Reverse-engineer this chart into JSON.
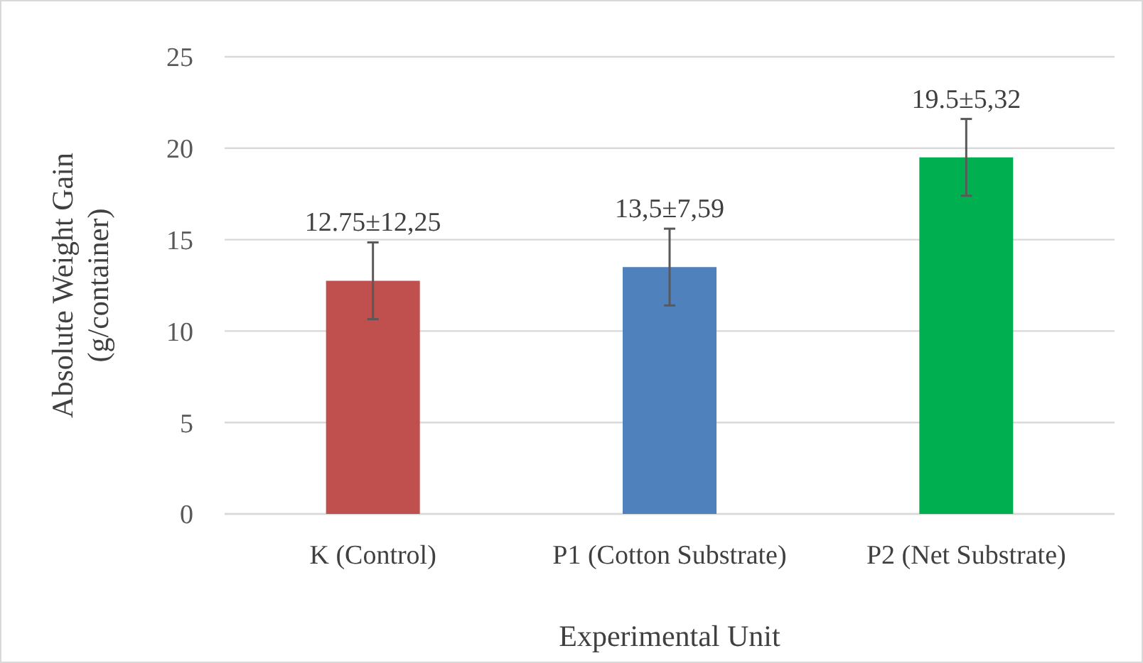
{
  "chart_data": {
    "type": "bar",
    "xlabel": "Experimental Unit",
    "ylabel": "Absolute Weight Gain\n(g/container)",
    "categories": [
      "K (Control)",
      "P1 (Cotton Substrate)",
      "P2 (Net Substrate)"
    ],
    "values": [
      12.75,
      13.5,
      19.5
    ],
    "colors": [
      "#c0504d",
      "#4f81bd",
      "#00b050"
    ],
    "errors": [
      2.1,
      2.1,
      2.1
    ],
    "value_labels": [
      "12.75±12,25",
      "13,5±7,59",
      "19.5±5,32"
    ],
    "ylim": [
      0,
      25
    ],
    "yticks": [
      0,
      5,
      10,
      15,
      20,
      25
    ],
    "grid": "y"
  }
}
